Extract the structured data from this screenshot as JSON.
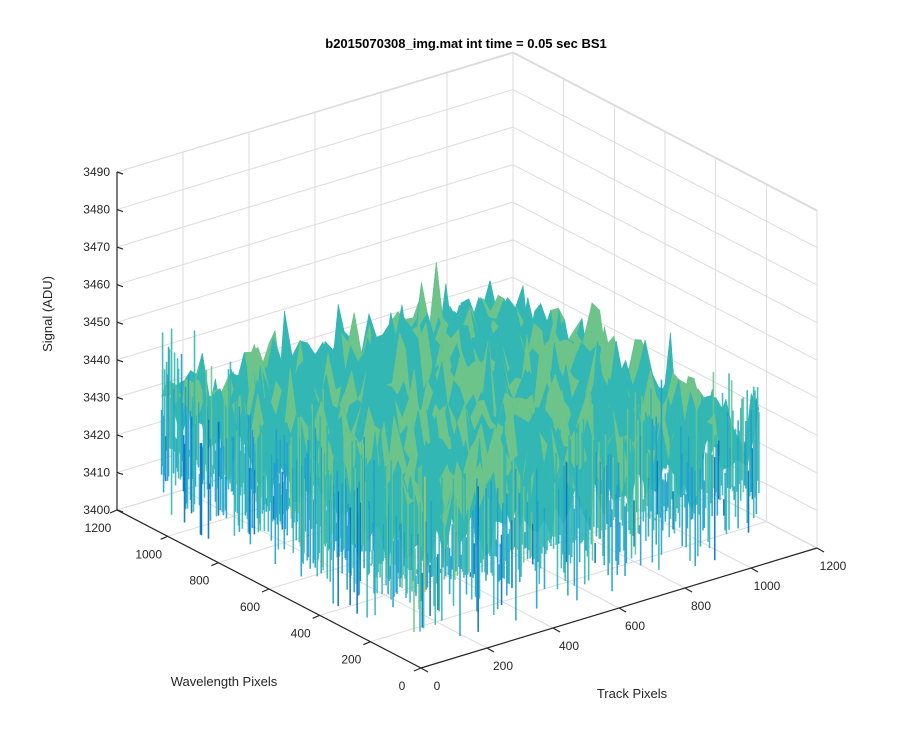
{
  "chart_data": {
    "type": "surface",
    "title": "b2015070308_img.mat int time = 0.05 sec   BS1",
    "xlabel": "Track Pixels",
    "ylabel": "Wavelength Pixels",
    "zlabel": "Signal (ADU)",
    "xlim": [
      0,
      1200
    ],
    "ylim": [
      0,
      1200
    ],
    "zlim": [
      3400,
      3490
    ],
    "x_ticks": [
      "0",
      "200",
      "400",
      "600",
      "800",
      "1000",
      "1200"
    ],
    "y_ticks": [
      "0",
      "200",
      "400",
      "600",
      "800",
      "1000",
      "1200"
    ],
    "z_ticks": [
      "3400",
      "3410",
      "3420",
      "3430",
      "3440",
      "3450",
      "3460",
      "3470",
      "3480",
      "3490"
    ],
    "grid": true,
    "surface": {
      "x_range": [
        0,
        1024
      ],
      "y_range": [
        0,
        1024
      ],
      "mean_signal": 3435,
      "min_signal": 3405,
      "max_signal": 3470,
      "description_of_values": "noisy near-flat dark frame"
    },
    "colormap": [
      "#0072bd",
      "#1f9fcf",
      "#33b7b4",
      "#6cc48a",
      "#c8c24a",
      "#f2d43a"
    ]
  }
}
